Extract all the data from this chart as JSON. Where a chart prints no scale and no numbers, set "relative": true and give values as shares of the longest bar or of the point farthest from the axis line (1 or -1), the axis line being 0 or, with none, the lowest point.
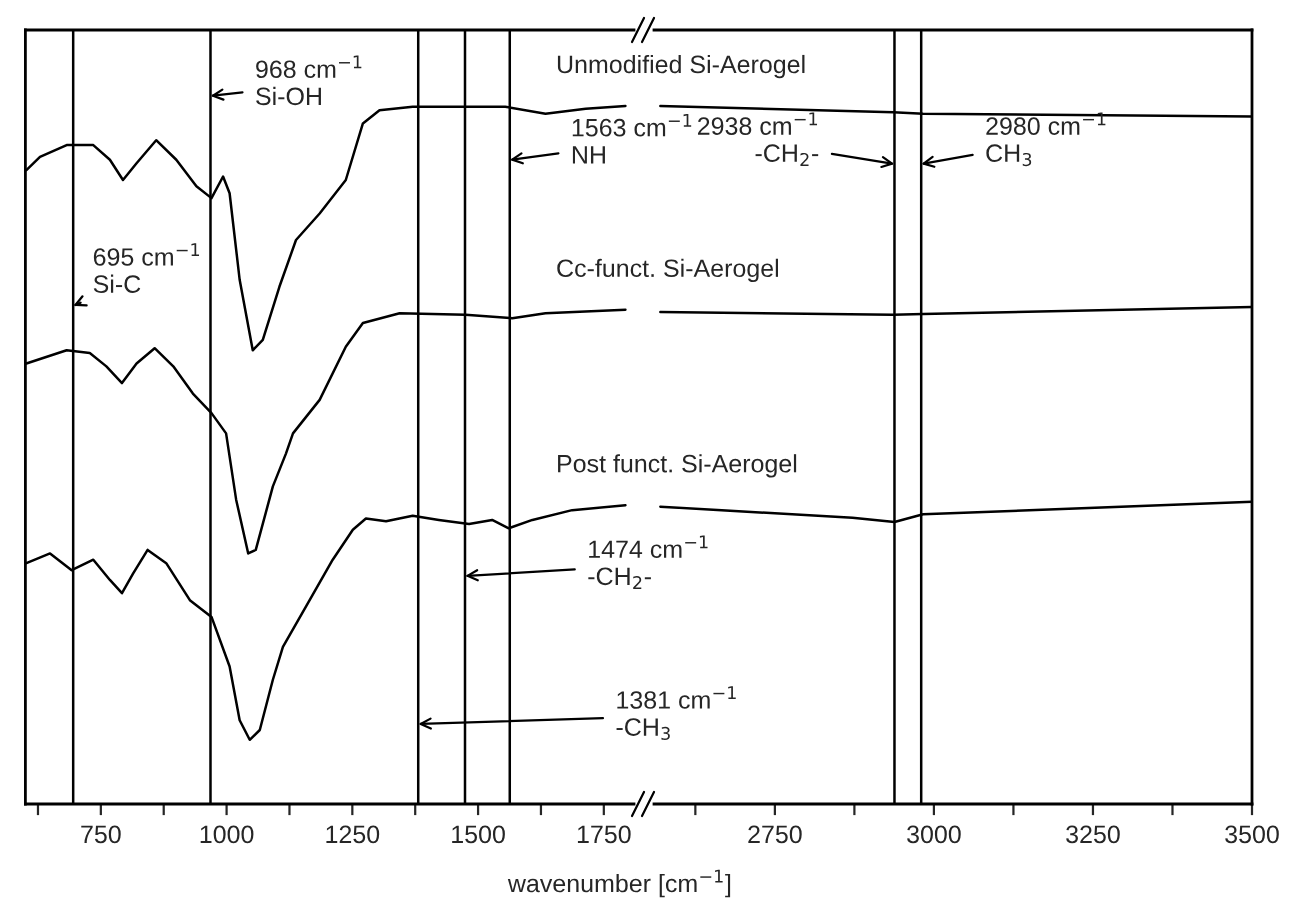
{
  "chart_data": [
    {
      "type": "line",
      "relative": true,
      "xlabel": "wavenumber [cm$^{−1}$]",
      "xlim": [
        600,
        1810
      ],
      "xticks": [
        {
          "value": 625,
          "label": null
        },
        750,
        {
          "value": 875,
          "label": null
        },
        1000,
        {
          "value": 1125,
          "label": null
        },
        1250,
        {
          "value": 1375,
          "label": null
        },
        1500,
        {
          "value": 1625,
          "label": null
        },
        1750
      ],
      "tick_labels": "x",
      "grid": false,
      "line_style": "solid",
      "marker": "none",
      "series": [
        {
          "name": "Unmodified Si-Aerogel",
          "color": "#000000",
          "x": [
            602,
            629,
            682,
            735,
            768,
            794,
            821,
            860,
            900,
            940,
            970,
            993,
            1006,
            1026,
            1052,
            1072,
            1105,
            1138,
            1185,
            1237,
            1271,
            1304,
            1370,
            1475,
            1554,
            1634,
            1714,
            1793
          ],
          "values": [
            0.908,
            0.927,
            0.944,
            0.944,
            0.923,
            0.894,
            0.918,
            0.951,
            0.923,
            0.885,
            0.868,
            0.899,
            0.875,
            0.751,
            0.65,
            0.665,
            0.741,
            0.808,
            0.846,
            0.894,
            0.975,
            0.994,
            0.999,
            0.999,
            0.999,
            0.989,
            0.996,
            1.0
          ]
        },
        {
          "name": "Cc-funct. Si-Aerogel",
          "color": "#000000",
          "x": [
            602,
            682,
            728,
            761,
            792,
            821,
            857,
            894,
            933,
            970,
            999,
            1019,
            1043,
            1058,
            1092,
            1118,
            1132,
            1185,
            1237,
            1271,
            1344,
            1475,
            1568,
            1634,
            1793
          ],
          "values": [
            0.631,
            0.65,
            0.646,
            0.627,
            0.603,
            0.631,
            0.653,
            0.627,
            0.588,
            0.56,
            0.531,
            0.436,
            0.359,
            0.364,
            0.455,
            0.502,
            0.531,
            0.579,
            0.655,
            0.689,
            0.703,
            0.701,
            0.696,
            0.703,
            0.708
          ]
        },
        {
          "name": "Post funct. Si-Aerogel",
          "color": "#000000",
          "x": [
            602,
            649,
            692,
            735,
            768,
            792,
            814,
            843,
            880,
            927,
            970,
            1006,
            1026,
            1046,
            1066,
            1092,
            1112,
            1158,
            1211,
            1251,
            1277,
            1317,
            1370,
            1422,
            1482,
            1528,
            1561,
            1608,
            1687,
            1793
          ],
          "values": [
            0.345,
            0.359,
            0.335,
            0.35,
            0.321,
            0.302,
            0.33,
            0.364,
            0.345,
            0.292,
            0.268,
            0.197,
            0.12,
            0.092,
            0.106,
            0.178,
            0.225,
            0.283,
            0.35,
            0.393,
            0.409,
            0.405,
            0.413,
            0.407,
            0.401,
            0.407,
            0.395,
            0.407,
            0.421,
            0.428
          ]
        }
      ],
      "ref_lines": [
        {
          "axis": "x",
          "value": 695,
          "label": "695 cm$^{−1}$\nSi-C",
          "color": "#000000"
        },
        {
          "axis": "x",
          "value": 968,
          "label": "968 cm$^{−1}$\nSi-OH",
          "color": "#000000"
        },
        {
          "axis": "x",
          "value": 1381,
          "label": "1381 cm$^{−1}$\n-CH$_{3}$",
          "color": "#000000"
        },
        {
          "axis": "x",
          "value": 1474,
          "label": "1474 cm$^{−1}$\n-CH$_{2}$-",
          "color": "#000000"
        },
        {
          "axis": "x",
          "value": 1563,
          "label": "1563 cm$^{−1}$\nNH",
          "color": "#000000"
        }
      ]
    },
    {
      "type": "line",
      "relative": true,
      "xlim": [
        2560,
        3500
      ],
      "xticks": [
        {
          "value": 2625,
          "label": null
        },
        2750,
        {
          "value": 2875,
          "label": null
        },
        3000,
        {
          "value": 3125,
          "label": null
        },
        3250,
        {
          "value": 3375,
          "label": null
        },
        3500
      ],
      "tick_labels": "x",
      "grid": false,
      "line_style": "solid",
      "marker": "none",
      "series": [
        {
          "color": "#000000",
          "x": [
            2570,
            2936,
            2983,
            3500
          ],
          "values": [
            1.0,
            0.991,
            0.989,
            0.985
          ]
        },
        {
          "color": "#000000",
          "x": [
            2570,
            2936,
            2983,
            3500
          ],
          "values": [
            0.705,
            0.701,
            0.702,
            0.712
          ]
        },
        {
          "color": "#000000",
          "x": [
            2570,
            2872,
            2938,
            2983,
            3500
          ],
          "values": [
            0.426,
            0.41,
            0.404,
            0.415,
            0.433
          ]
        }
      ],
      "ref_lines": [
        {
          "axis": "x",
          "value": 2938,
          "label": "2938 cm$^{−1}$\n-CH$_{2}$-",
          "color": "#000000"
        },
        {
          "axis": "x",
          "value": 2980,
          "label": "2980 cm$^{−1}$\nCH$_{3}$",
          "color": "#000000"
        }
      ]
    }
  ]
}
